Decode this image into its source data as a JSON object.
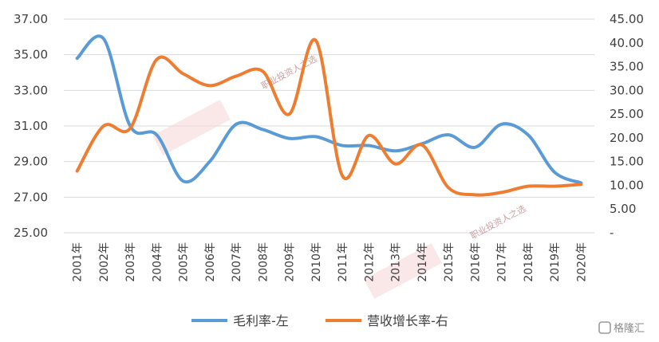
{
  "chart_data": {
    "type": "line",
    "title": "",
    "x": [
      "2001年",
      "2002年",
      "2003年",
      "2004年",
      "2005年",
      "2006年",
      "2007年",
      "2008年",
      "2009年",
      "2010年",
      "2011年",
      "2012年",
      "2013年",
      "2014年",
      "2015年",
      "2016年",
      "2017年",
      "2018年",
      "2019年",
      "2020年"
    ],
    "y_left": {
      "ylim": [
        25,
        37
      ],
      "ticks": [
        "25.00",
        "27.00",
        "29.00",
        "31.00",
        "33.00",
        "35.00",
        "37.00"
      ]
    },
    "y_right": {
      "ylim": [
        0,
        45
      ],
      "ticks": [
        "-",
        "5.00",
        "10.00",
        "15.00",
        "20.00",
        "25.00",
        "30.00",
        "35.00",
        "40.00",
        "45.00"
      ]
    },
    "series": [
      {
        "name": "毛利率-左",
        "axis": "left",
        "color": "#5b9bd5",
        "values": [
          34.8,
          35.9,
          31.0,
          30.5,
          27.9,
          29.0,
          31.1,
          30.8,
          30.3,
          30.4,
          29.9,
          29.9,
          29.6,
          30.0,
          30.5,
          29.8,
          31.1,
          30.5,
          28.4,
          27.8
        ]
      },
      {
        "name": "营收增长率-右",
        "axis": "right",
        "color": "#ed7d31",
        "values": [
          13.0,
          22.5,
          22.0,
          36.5,
          33.5,
          31.0,
          33.0,
          34.0,
          25.0,
          40.5,
          12.0,
          20.5,
          14.5,
          18.5,
          9.5,
          8.0,
          8.5,
          9.8,
          9.8,
          10.2
        ]
      }
    ],
    "legend_position": "bottom",
    "grid": "horizontal"
  },
  "watermarks": [
    "职业投资人之选",
    "职业投资人之选"
  ],
  "brand": {
    "label": "格隆汇"
  }
}
